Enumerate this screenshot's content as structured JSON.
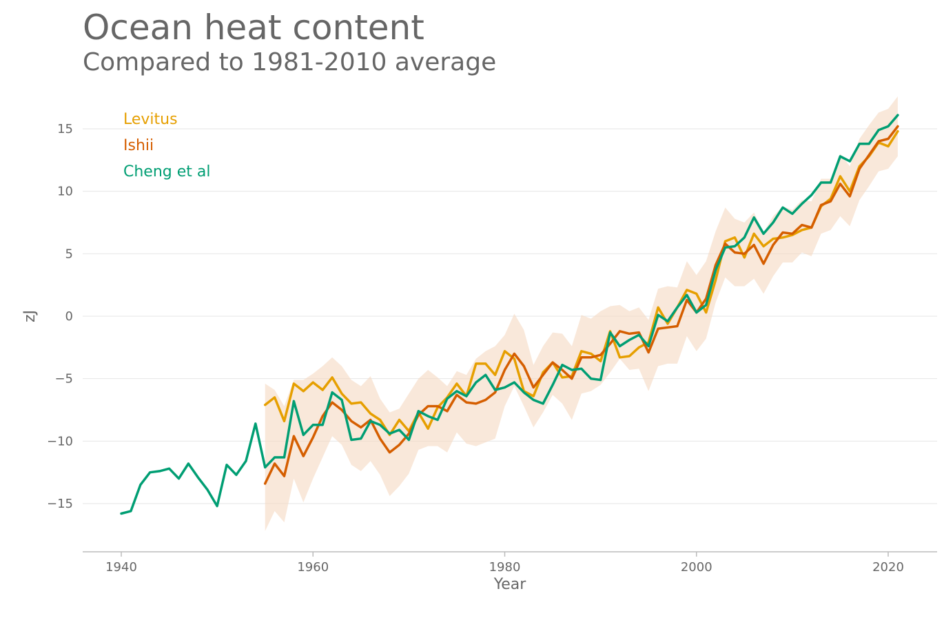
{
  "title": "Ocean heat content",
  "subtitle": "Compared to 1981-2010 average",
  "chart_data": {
    "type": "line",
    "title": "Ocean heat content",
    "subtitle": "Compared to 1981-2010 average",
    "xlabel": "Year",
    "ylabel": "zJ",
    "xlim": [
      1936,
      2025
    ],
    "ylim": [
      -18.5,
      17.5
    ],
    "x_ticks": [
      1940,
      1960,
      1980,
      2000,
      2020
    ],
    "y_ticks": [
      -15,
      -10,
      -5,
      0,
      5,
      10,
      15
    ],
    "x_tick_labels": [
      "1940",
      "1960",
      "1980",
      "2000",
      "2020"
    ],
    "y_tick_labels": [
      "−15",
      "−10",
      "−5",
      "0",
      "5",
      "10",
      "15"
    ],
    "grid": "horizontal",
    "legend_position": "top-left",
    "series": [
      {
        "name": "Levitus",
        "color": "#E69F00",
        "x": [
          1955,
          1956,
          1957,
          1958,
          1959,
          1960,
          1961,
          1962,
          1963,
          1964,
          1965,
          1966,
          1967,
          1968,
          1969,
          1970,
          1971,
          1972,
          1973,
          1974,
          1975,
          1976,
          1977,
          1978,
          1979,
          1980,
          1981,
          1982,
          1983,
          1984,
          1985,
          1986,
          1987,
          1988,
          1989,
          1990,
          1991,
          1992,
          1993,
          1994,
          1995,
          1996,
          1997,
          1998,
          1999,
          2000,
          2001,
          2002,
          2003,
          2004,
          2005,
          2006,
          2007,
          2008,
          2009,
          2010,
          2011,
          2012,
          2013,
          2014,
          2015,
          2016,
          2017,
          2018,
          2019,
          2020,
          2021
        ],
        "values": [
          -7.1,
          -6.5,
          -8.4,
          -5.4,
          -6.0,
          -5.3,
          -5.9,
          -4.9,
          -6.2,
          -7.0,
          -6.9,
          -7.8,
          -8.3,
          -9.5,
          -8.3,
          -9.2,
          -7.7,
          -9.0,
          -7.3,
          -6.5,
          -5.4,
          -6.4,
          -3.8,
          -3.8,
          -4.7,
          -2.8,
          -3.4,
          -6.0,
          -6.4,
          -4.5,
          -3.7,
          -4.9,
          -4.8,
          -2.8,
          -3.0,
          -3.6,
          -1.2,
          -3.3,
          -3.2,
          -2.5,
          -2.1,
          0.7,
          -0.6,
          0.7,
          2.1,
          1.8,
          0.3,
          2.9,
          6.0,
          6.3,
          4.7,
          6.6,
          5.6,
          6.2,
          6.3,
          6.5,
          6.9,
          7.1,
          8.8,
          9.4,
          11.2,
          10.0,
          12.0,
          12.8,
          13.9,
          13.6,
          14.8
        ]
      },
      {
        "name": "Ishii",
        "color": "#D55E00",
        "x": [
          1955,
          1956,
          1957,
          1958,
          1959,
          1960,
          1961,
          1962,
          1963,
          1964,
          1965,
          1966,
          1967,
          1968,
          1969,
          1970,
          1971,
          1972,
          1973,
          1974,
          1975,
          1976,
          1977,
          1978,
          1979,
          1980,
          1981,
          1982,
          1983,
          1984,
          1985,
          1986,
          1987,
          1988,
          1989,
          1990,
          1991,
          1992,
          1993,
          1994,
          1995,
          1996,
          1997,
          1998,
          1999,
          2000,
          2001,
          2002,
          2003,
          2004,
          2005,
          2006,
          2007,
          2008,
          2009,
          2010,
          2011,
          2012,
          2013,
          2014,
          2015,
          2016,
          2017,
          2018,
          2019,
          2020,
          2021
        ],
        "values": [
          -13.4,
          -11.8,
          -12.8,
          -9.6,
          -11.2,
          -9.7,
          -8.0,
          -6.9,
          -7.5,
          -8.4,
          -8.9,
          -8.3,
          -9.8,
          -10.9,
          -10.3,
          -9.4,
          -7.9,
          -7.2,
          -7.2,
          -7.6,
          -6.3,
          -6.9,
          -7.0,
          -6.7,
          -6.1,
          -4.3,
          -3.0,
          -4.0,
          -5.7,
          -4.7,
          -3.7,
          -4.3,
          -5.0,
          -3.3,
          -3.3,
          -3.1,
          -2.2,
          -1.2,
          -1.4,
          -1.3,
          -2.9,
          -1.0,
          -0.9,
          -0.8,
          1.3,
          0.3,
          1.4,
          4.1,
          5.8,
          5.1,
          5.0,
          5.7,
          4.2,
          5.7,
          6.7,
          6.6,
          7.3,
          7.1,
          8.9,
          9.2,
          10.6,
          9.6,
          11.8,
          12.9,
          14.0,
          14.2,
          15.2
        ]
      },
      {
        "name": "Cheng et al",
        "color": "#009E73",
        "x": [
          1940,
          1941,
          1942,
          1943,
          1944,
          1945,
          1946,
          1947,
          1948,
          1949,
          1950,
          1951,
          1952,
          1953,
          1954,
          1955,
          1956,
          1957,
          1958,
          1959,
          1960,
          1961,
          1962,
          1963,
          1964,
          1965,
          1966,
          1967,
          1968,
          1969,
          1970,
          1971,
          1972,
          1973,
          1974,
          1975,
          1976,
          1977,
          1978,
          1979,
          1980,
          1981,
          1982,
          1983,
          1984,
          1985,
          1986,
          1987,
          1988,
          1989,
          1990,
          1991,
          1992,
          1993,
          1994,
          1995,
          1996,
          1997,
          1998,
          1999,
          2000,
          2001,
          2002,
          2003,
          2004,
          2005,
          2006,
          2007,
          2008,
          2009,
          2010,
          2011,
          2012,
          2013,
          2014,
          2015,
          2016,
          2017,
          2018,
          2019,
          2020,
          2021
        ],
        "values": [
          -15.8,
          -15.6,
          -13.5,
          -12.5,
          -12.4,
          -12.2,
          -13.0,
          -11.8,
          -12.9,
          -13.9,
          -15.2,
          -11.9,
          -12.7,
          -11.6,
          -8.6,
          -12.1,
          -11.3,
          -11.3,
          -6.8,
          -9.5,
          -8.7,
          -8.7,
          -6.1,
          -6.7,
          -9.9,
          -9.8,
          -8.4,
          -8.7,
          -9.4,
          -9.1,
          -9.9,
          -7.6,
          -8.0,
          -8.3,
          -6.6,
          -6.0,
          -6.4,
          -5.3,
          -4.7,
          -5.9,
          -5.7,
          -5.3,
          -6.1,
          -6.7,
          -7.0,
          -5.5,
          -3.9,
          -4.3,
          -4.2,
          -5.0,
          -5.1,
          -1.3,
          -2.4,
          -1.9,
          -1.5,
          -2.4,
          0.1,
          -0.4,
          0.7,
          1.7,
          0.3,
          0.9,
          3.7,
          5.5,
          5.6,
          6.3,
          7.9,
          6.6,
          7.5,
          8.7,
          8.2,
          9.0,
          9.7,
          10.7,
          10.7,
          12.8,
          12.4,
          13.8,
          13.8,
          14.9,
          15.2,
          16.1
        ]
      }
    ],
    "uncertainty_band": {
      "color": "#F5D9C2",
      "x": [
        1955,
        1956,
        1957,
        1958,
        1959,
        1960,
        1961,
        1962,
        1963,
        1964,
        1965,
        1966,
        1967,
        1968,
        1969,
        1970,
        1971,
        1972,
        1973,
        1974,
        1975,
        1976,
        1977,
        1978,
        1979,
        1980,
        1981,
        1982,
        1983,
        1984,
        1985,
        1986,
        1987,
        1988,
        1989,
        1990,
        1991,
        1992,
        1993,
        1994,
        1995,
        1996,
        1997,
        1998,
        1999,
        2000,
        2001,
        2002,
        2003,
        2004,
        2005,
        2006,
        2007,
        2008,
        2009,
        2010,
        2011,
        2012,
        2013,
        2014,
        2015,
        2016,
        2017,
        2018,
        2019,
        2020,
        2021
      ],
      "upper": [
        -5.4,
        -5.9,
        -7.2,
        -5.1,
        -5.1,
        -4.6,
        -4.0,
        -3.3,
        -4.0,
        -5.1,
        -5.6,
        -4.8,
        -6.6,
        -7.7,
        -7.4,
        -6.2,
        -5.0,
        -4.3,
        -4.9,
        -5.6,
        -4.4,
        -4.7,
        -3.4,
        -2.8,
        -2.4,
        -1.5,
        0.2,
        -1.1,
        -3.9,
        -2.4,
        -1.3,
        -1.4,
        -2.4,
        0.1,
        -0.2,
        0.4,
        0.8,
        0.9,
        0.4,
        0.7,
        -0.3,
        2.2,
        2.4,
        2.3,
        4.4,
        3.3,
        4.4,
        6.8,
        8.7,
        7.8,
        7.5,
        8.3,
        6.7,
        8.0,
        8.8,
        8.5,
        9.3,
        9.2,
        11.0,
        11.0,
        13.0,
        12.0,
        14.2,
        15.3,
        16.3,
        16.6,
        17.6
      ],
      "lower": [
        -17.2,
        -15.6,
        -16.5,
        -13.0,
        -14.9,
        -13.0,
        -11.3,
        -9.6,
        -10.3,
        -11.9,
        -12.4,
        -11.6,
        -12.7,
        -14.4,
        -13.6,
        -12.6,
        -10.7,
        -10.4,
        -10.4,
        -10.9,
        -9.3,
        -10.2,
        -10.4,
        -10.1,
        -9.8,
        -7.2,
        -5.6,
        -7.2,
        -8.9,
        -7.7,
        -6.3,
        -7.0,
        -8.3,
        -6.2,
        -6.0,
        -5.5,
        -4.5,
        -3.4,
        -4.3,
        -4.2,
        -6.0,
        -4.0,
        -3.8,
        -3.8,
        -1.6,
        -2.8,
        -1.8,
        1.1,
        3.1,
        2.4,
        2.4,
        3.0,
        1.8,
        3.2,
        4.3,
        4.3,
        5.1,
        4.8,
        6.6,
        6.9,
        8.0,
        7.2,
        9.3,
        10.4,
        11.6,
        11.8,
        12.8
      ]
    }
  }
}
